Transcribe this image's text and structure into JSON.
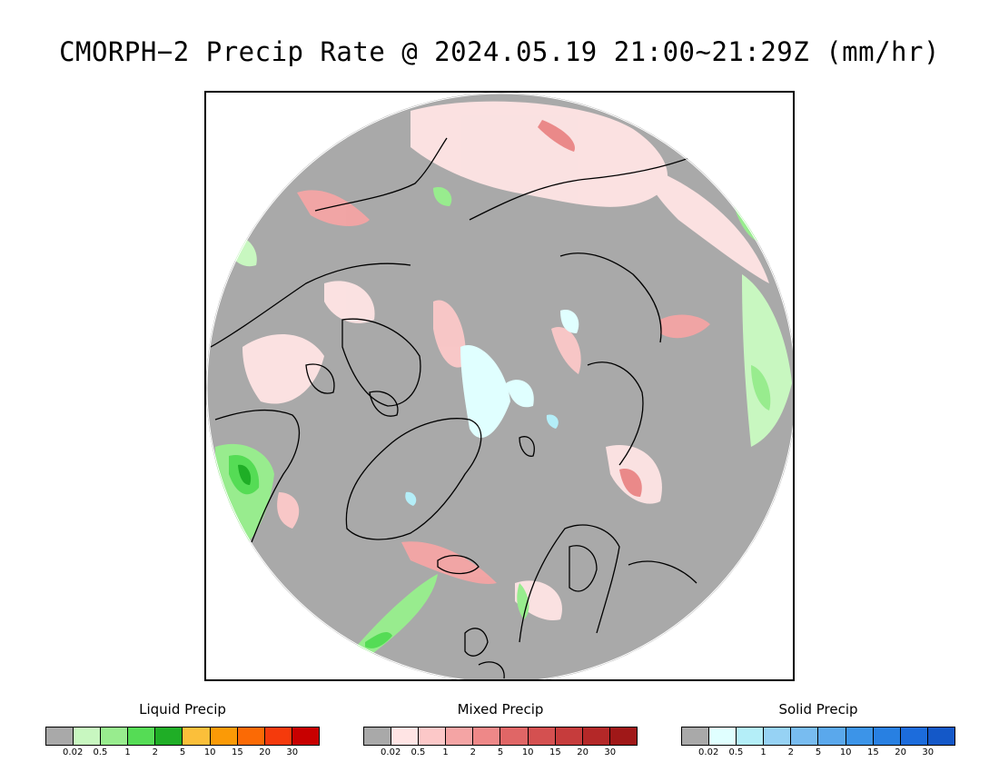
{
  "title": "CMORPH−2 Precip Rate @ 2024.05.19 21:00~21:29Z (mm/hr)",
  "map": {
    "projection": "north polar stereographic",
    "background_color": "#a9a9a9",
    "coastline_color": "#000000"
  },
  "legends": [
    {
      "id": "liquid",
      "title": "Liquid Precip",
      "colors": [
        "#a9a9a9",
        "#c8f7c0",
        "#98ec8e",
        "#55dc55",
        "#1fae26",
        "#fbbf3a",
        "#fb9a06",
        "#fb6a05",
        "#f53a0c",
        "#c80000"
      ],
      "ticks": [
        "0.02",
        "0.5",
        "1",
        "2",
        "5",
        "10",
        "15",
        "20",
        "30"
      ]
    },
    {
      "id": "mixed",
      "title": "Mixed Precip",
      "colors": [
        "#a9a9a9",
        "#ffe4e4",
        "#fcc8c8",
        "#f4a4a4",
        "#ee8888",
        "#e06666",
        "#d45050",
        "#c63c3c",
        "#b42828",
        "#a01818"
      ],
      "ticks": [
        "0.02",
        "0.5",
        "1",
        "2",
        "5",
        "10",
        "15",
        "20",
        "30"
      ]
    },
    {
      "id": "solid",
      "title": "Solid Precip",
      "colors": [
        "#a9a9a9",
        "#e0ffff",
        "#b4eef8",
        "#96d2f4",
        "#78bcf0",
        "#5aa8ec",
        "#3c94e8",
        "#2880e2",
        "#1c6cdc",
        "#1458c8"
      ],
      "ticks": [
        "0.02",
        "0.5",
        "1",
        "2",
        "5",
        "10",
        "15",
        "20",
        "30"
      ]
    }
  ]
}
